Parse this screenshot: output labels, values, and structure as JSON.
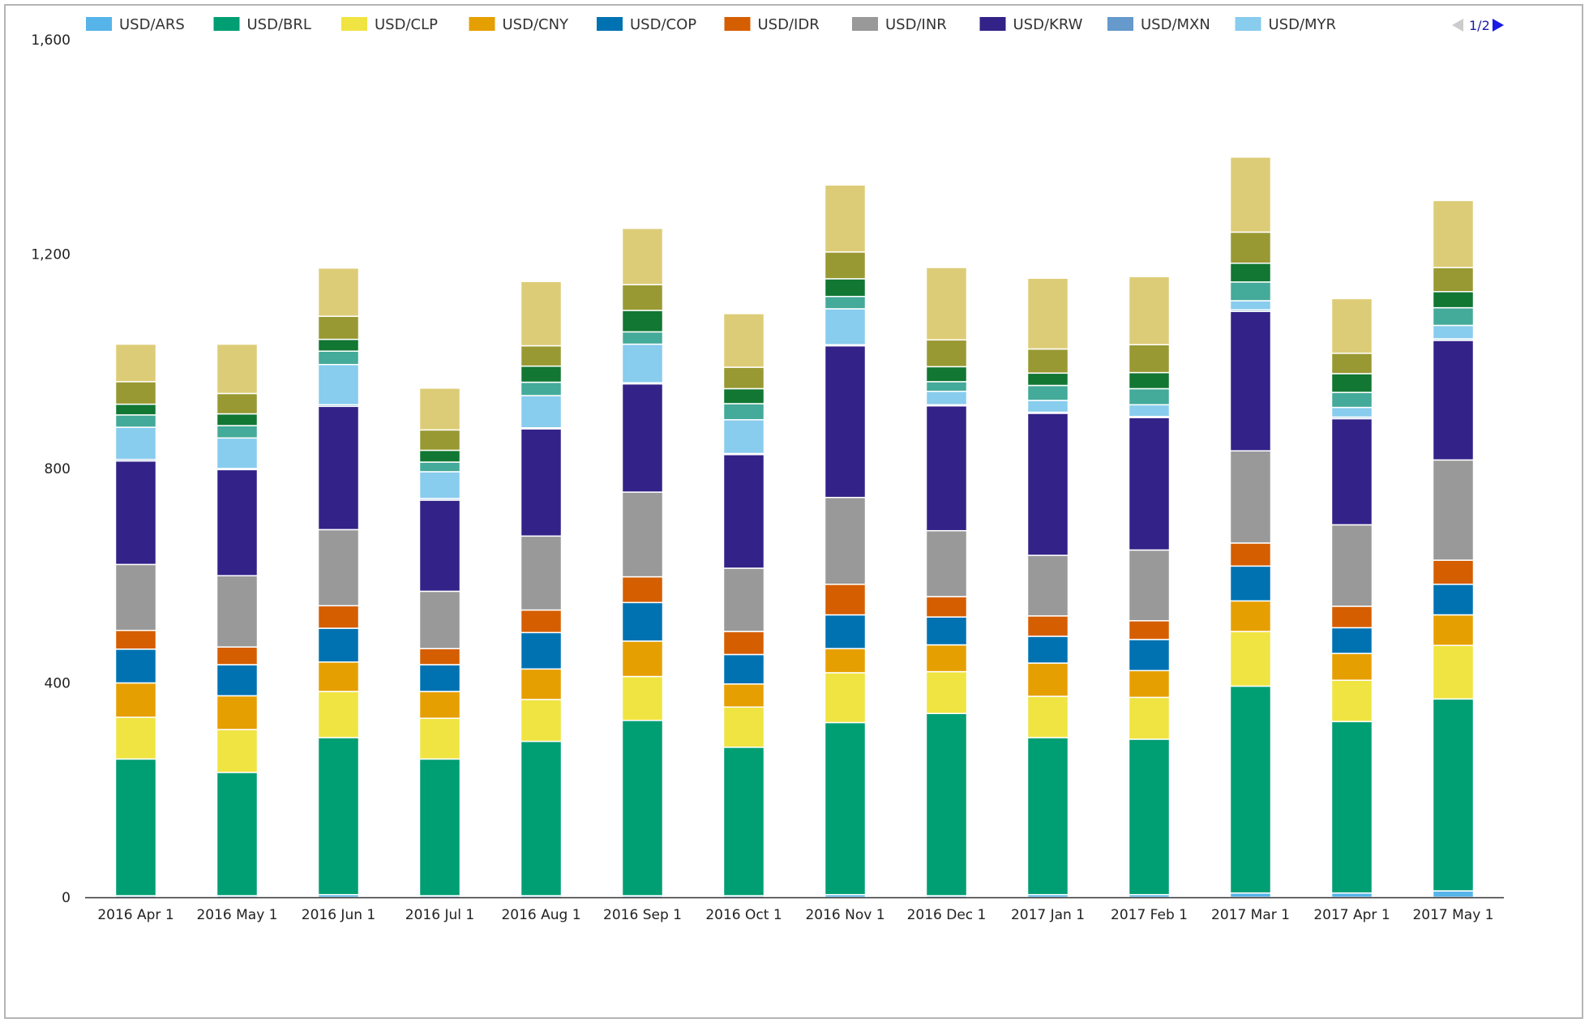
{
  "legend": {
    "items": [
      {
        "label": "USD/ARS",
        "color": "#56b4e9"
      },
      {
        "label": "USD/BRL",
        "color": "#009e73"
      },
      {
        "label": "USD/CLP",
        "color": "#f0e442"
      },
      {
        "label": "USD/CNY",
        "color": "#e69f00"
      },
      {
        "label": "USD/COP",
        "color": "#0072b2"
      },
      {
        "label": "USD/IDR",
        "color": "#d55e00"
      },
      {
        "label": "USD/INR",
        "color": "#999999"
      },
      {
        "label": "USD/KRW",
        "color": "#332288"
      },
      {
        "label": "USD/MXN",
        "color": "#6699cc"
      },
      {
        "label": "USD/MYR",
        "color": "#88ccee"
      }
    ],
    "pager": "1/2",
    "pager_prev_icon": "triangle-left-icon",
    "pager_next_icon": "triangle-right-icon"
  },
  "chart_data": {
    "type": "bar",
    "stacked": true,
    "categories": [
      "2016 Apr 1",
      "2016 May 1",
      "2016 Jun 1",
      "2016 Jul 1",
      "2016 Aug 1",
      "2016 Sep 1",
      "2016 Oct 1",
      "2016 Nov 1",
      "2016 Dec 1",
      "2017 Jan 1",
      "2017 Feb 1",
      "2017 Mar 1",
      "2017 Apr 1",
      "2017 May 1"
    ],
    "yticks": [
      0,
      400,
      800,
      1200,
      1600
    ],
    "ytick_labels": [
      "0",
      "400",
      "800",
      "1,200",
      "1,600"
    ],
    "ylim": [
      0,
      1600
    ],
    "grid": false,
    "legend_position": "top",
    "series": [
      {
        "name": "USD/ARS",
        "color": "#56b4e9",
        "values": [
          3,
          3,
          5,
          3,
          3,
          3,
          3,
          5,
          3,
          5,
          5,
          8,
          8,
          12
        ]
      },
      {
        "name": "USD/BRL",
        "color": "#009e73",
        "values": [
          255,
          230,
          293,
          255,
          288,
          327,
          277,
          321,
          340,
          293,
          290,
          386,
          320,
          358
        ]
      },
      {
        "name": "USD/CLP",
        "color": "#f0e442",
        "values": [
          78,
          80,
          86,
          76,
          78,
          82,
          75,
          93,
          78,
          77,
          78,
          102,
          77,
          100
        ]
      },
      {
        "name": "USD/CNY",
        "color": "#e69f00",
        "values": [
          64,
          63,
          55,
          50,
          57,
          66,
          43,
          45,
          50,
          62,
          50,
          57,
          50,
          57
        ]
      },
      {
        "name": "USD/COP",
        "color": "#0072b2",
        "values": [
          63,
          58,
          63,
          50,
          68,
          72,
          55,
          63,
          52,
          50,
          58,
          65,
          48,
          57
        ]
      },
      {
        "name": "USD/IDR",
        "color": "#d55e00",
        "values": [
          35,
          33,
          42,
          30,
          42,
          48,
          43,
          57,
          38,
          38,
          35,
          43,
          40,
          45
        ]
      },
      {
        "name": "USD/INR",
        "color": "#999999",
        "values": [
          123,
          133,
          142,
          107,
          138,
          158,
          118,
          162,
          123,
          113,
          132,
          172,
          152,
          187
        ]
      },
      {
        "name": "USD/KRW",
        "color": "#332288",
        "values": [
          193,
          198,
          230,
          170,
          200,
          202,
          212,
          283,
          233,
          265,
          247,
          260,
          198,
          223
        ]
      },
      {
        "name": "USD/MXN",
        "color": "#6699cc",
        "values": [
          3,
          2,
          3,
          3,
          2,
          2,
          2,
          2,
          2,
          2,
          2,
          3,
          3,
          3
        ]
      },
      {
        "name": "USD/MYR",
        "color": "#88ccee",
        "values": [
          60,
          57,
          75,
          50,
          60,
          72,
          63,
          67,
          25,
          22,
          22,
          17,
          18,
          25
        ]
      },
      {
        "name": "",
        "color": "#44aa99",
        "values": [
          23,
          23,
          25,
          18,
          25,
          23,
          30,
          23,
          18,
          28,
          30,
          35,
          28,
          33
        ]
      },
      {
        "name": "",
        "color": "#117733",
        "values": [
          20,
          22,
          22,
          22,
          30,
          40,
          28,
          33,
          28,
          23,
          30,
          35,
          35,
          30
        ]
      },
      {
        "name": "",
        "color": "#999933",
        "values": [
          42,
          38,
          43,
          38,
          38,
          48,
          40,
          50,
          50,
          45,
          52,
          58,
          38,
          45
        ]
      },
      {
        "name": "",
        "color": "#ddcc77",
        "values": [
          70,
          92,
          90,
          78,
          120,
          105,
          100,
          125,
          135,
          132,
          127,
          140,
          102,
          125
        ]
      }
    ]
  }
}
